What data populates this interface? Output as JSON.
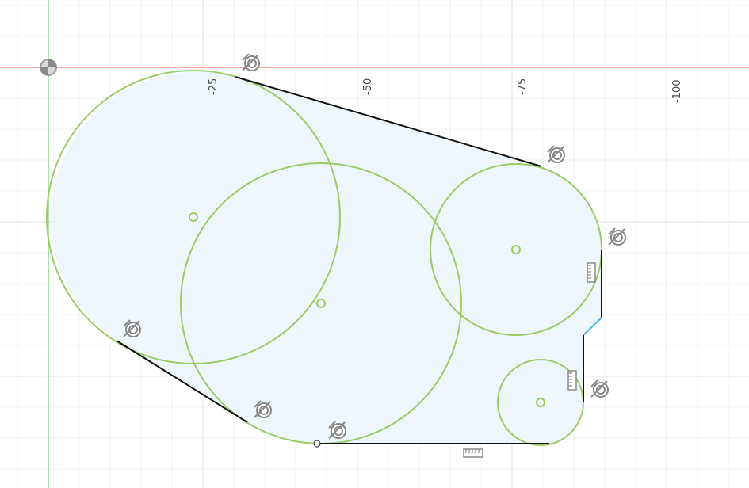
{
  "viewport": {
    "type": "sketch-canvas",
    "axis_tick_labels": [
      "-25",
      "-50",
      "-75",
      "-100"
    ],
    "colors": {
      "background": "#ffffff",
      "grid_minor": "#f0f0f0",
      "grid_major": "#e0e0e0",
      "x_axis": "#f07070",
      "y_axis": "#8fd88f",
      "profile_fill": "#eef6fc",
      "circle_stroke": "#9ccc65",
      "line_stroke": "#111111",
      "selected_line": "#4fb3e8",
      "constraint_glyph": "#888888"
    }
  },
  "sketch": {
    "circles": [
      "large-circle-left",
      "large-circle-center",
      "medium-circle-right",
      "small-circle-bottom-right"
    ],
    "constraint_icons": [
      "tangent",
      "tangent",
      "tangent",
      "tangent",
      "tangent",
      "tangent",
      "tangent"
    ],
    "dimension_icons": [
      "horizontal",
      "vertical",
      "vertical"
    ],
    "origin": "origin-icon"
  }
}
